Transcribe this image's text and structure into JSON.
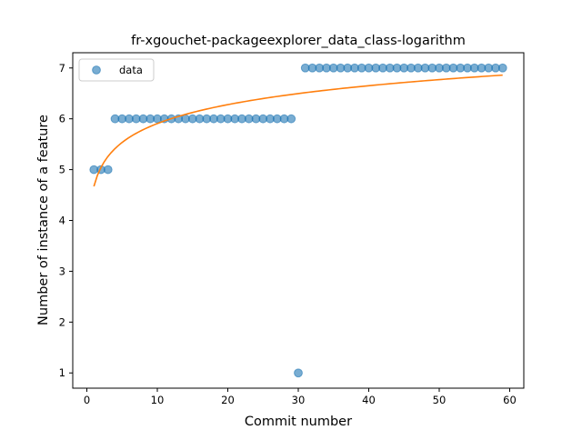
{
  "chart_data": {
    "type": "scatter",
    "title": "fr-xgouchet-packageexplorer_data_class-logarithm",
    "xlabel": "Commit number",
    "ylabel": "Number of instance of a feature",
    "xlim": [
      -2,
      62
    ],
    "ylim": [
      0.7,
      7.3
    ],
    "x_ticks": [
      0,
      10,
      20,
      30,
      40,
      50,
      60
    ],
    "y_ticks": [
      1,
      2,
      3,
      4,
      5,
      6,
      7
    ],
    "grid": false,
    "legend_position": "top-left",
    "series": [
      {
        "name": "data",
        "kind": "scatter",
        "color": "#1f77b4",
        "x": [
          1,
          2,
          3,
          4,
          5,
          6,
          7,
          8,
          9,
          10,
          11,
          12,
          13,
          14,
          15,
          16,
          17,
          18,
          19,
          20,
          21,
          22,
          23,
          24,
          25,
          26,
          27,
          28,
          29,
          30,
          31,
          32,
          33,
          34,
          35,
          36,
          37,
          38,
          39,
          40,
          41,
          42,
          43,
          44,
          45,
          46,
          47,
          48,
          49,
          50,
          51,
          52,
          53,
          54,
          55,
          56,
          57,
          58,
          59
        ],
        "y": [
          5,
          5,
          5,
          6,
          6,
          6,
          6,
          6,
          6,
          6,
          6,
          6,
          6,
          6,
          6,
          6,
          6,
          6,
          6,
          6,
          6,
          6,
          6,
          6,
          6,
          6,
          6,
          6,
          6,
          1,
          7,
          7,
          7,
          7,
          7,
          7,
          7,
          7,
          7,
          7,
          7,
          7,
          7,
          7,
          7,
          7,
          7,
          7,
          7,
          7,
          7,
          7,
          7,
          7,
          7,
          7,
          7,
          7,
          7
        ]
      },
      {
        "kind": "line",
        "color": "#ff7f0e",
        "model": "logarithmic",
        "coef_a": 4.67,
        "coef_b": 0.537,
        "x_range": [
          1,
          59
        ]
      }
    ]
  }
}
